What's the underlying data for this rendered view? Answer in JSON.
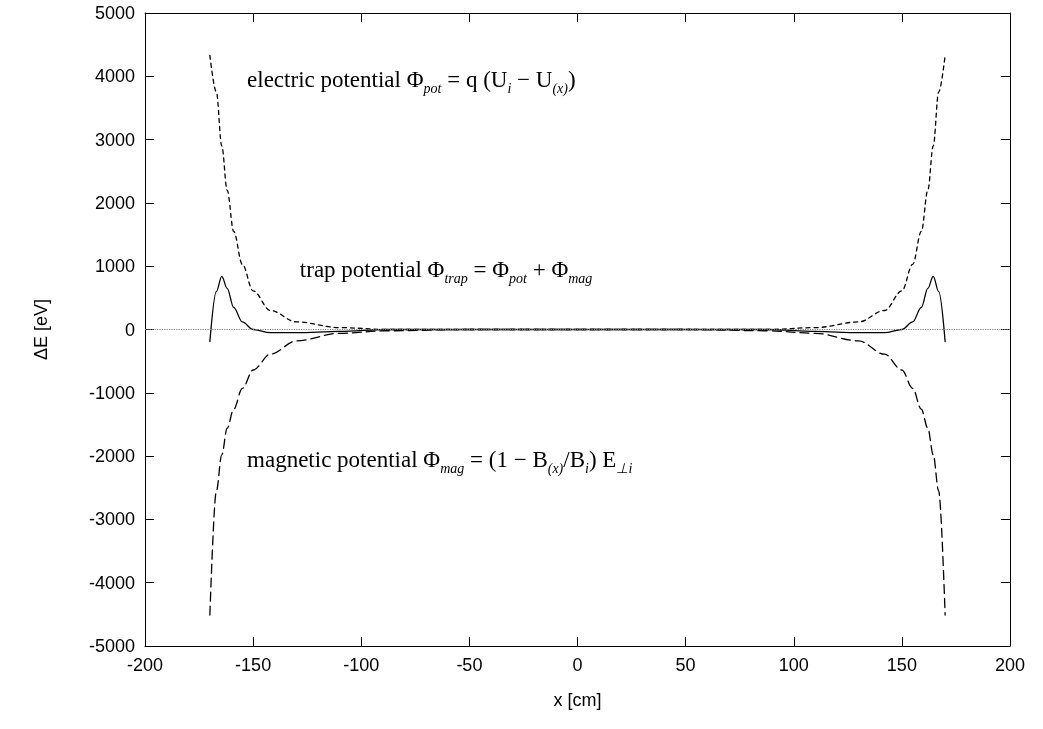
{
  "chart_data": {
    "type": "line",
    "xlabel": "x [cm]",
    "ylabel": "ΔE [eV]",
    "x": [
      -170,
      -167,
      -164.5,
      -162,
      -159,
      -155,
      -150,
      -142,
      -130,
      -110,
      -88,
      -50,
      0,
      50,
      88,
      110,
      130,
      142,
      150,
      155,
      159,
      162,
      164.5,
      167,
      170
    ],
    "series": [
      {
        "color": "#000000",
        "line_style": "dashed",
        "values": [
          4330,
          3750,
          2900,
          2200,
          1550,
          1030,
          610,
          300,
          120,
          30,
          0,
          0,
          0,
          0,
          0,
          30,
          120,
          300,
          610,
          1030,
          1550,
          2200,
          2900,
          3750,
          4330
        ]
      },
      {
        "color": "#000000",
        "line_style": "dashed",
        "values": [
          -4510,
          -2550,
          -1980,
          -1560,
          -1260,
          -930,
          -640,
          -390,
          -180,
          -60,
          -20,
          0,
          0,
          0,
          -20,
          -60,
          -180,
          -390,
          -640,
          -930,
          -1260,
          -1560,
          -1980,
          -2550,
          -4510
        ]
      },
      {
        "color": "#000000",
        "line_style": "solid",
        "values": [
          -190,
          600,
          840,
          650,
          350,
          120,
          0,
          -50,
          -50,
          -30,
          0,
          0,
          0,
          0,
          0,
          -30,
          -50,
          -50,
          0,
          120,
          350,
          650,
          840,
          600,
          -190
        ]
      }
    ],
    "xlim": [
      -200,
      200
    ],
    "xticks": [
      -200,
      -150,
      -100,
      -50,
      0,
      50,
      100,
      150,
      200
    ],
    "ylim": [
      -5000,
      5000
    ],
    "yticks": [
      -5000,
      -4000,
      -3000,
      -2000,
      -1000,
      0,
      1000,
      2000,
      3000,
      4000,
      5000
    ],
    "ref_lines": [
      {
        "axis": "y",
        "value": 0,
        "color": "#808080",
        "line_style": "dotted"
      }
    ],
    "annotations": [
      "electric potential Φ$_{pot}$ = q (U$_{i}$ − U$_{(x)}$)",
      "trap potential Φ$_{trap}$ = Φ$_{pot}$ + Φ$_{mag}$",
      "magnetic potential Φ$_{mag}$ = (1 − B$_{(x)}$/B$_{i}$) E$_{⊥i}$"
    ],
    "marker": "none"
  }
}
